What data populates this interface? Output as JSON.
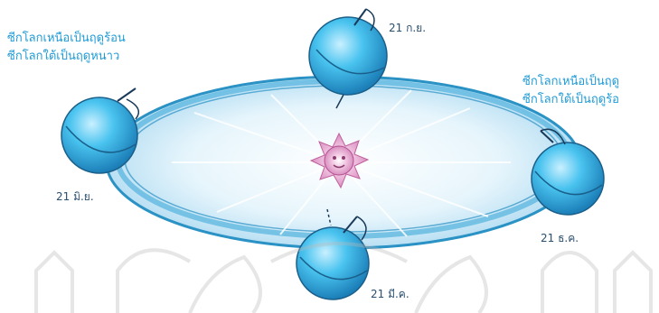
{
  "labels": {
    "left_top": "ซีกโลกเหนือเป็นฤดูร้อน",
    "left_bottom": "ซีกโลกใต้เป็นฤดูหนาว",
    "right_top": "ซีกโลกเหนือเป็นฤดู",
    "right_bottom": "ซีกโลกใต้เป็นฤดูร้อ"
  },
  "dates": {
    "top": "21 ก.ย.",
    "left": "21 มิ.ย.",
    "right": "21 ธ.ค.",
    "bottom": "21 มี.ค."
  },
  "colors": {
    "orbit": "#2a92c4",
    "orbit_fill": "#cde9f7",
    "earth": "#3db8e8",
    "sun": "#d98fc0",
    "label": "#1f9bd6",
    "watermark": "#b9b9b9"
  },
  "icons": {
    "earth": "earth-globe-icon",
    "sun": "sun-icon",
    "watermark": "watermark-emblem-icon"
  }
}
